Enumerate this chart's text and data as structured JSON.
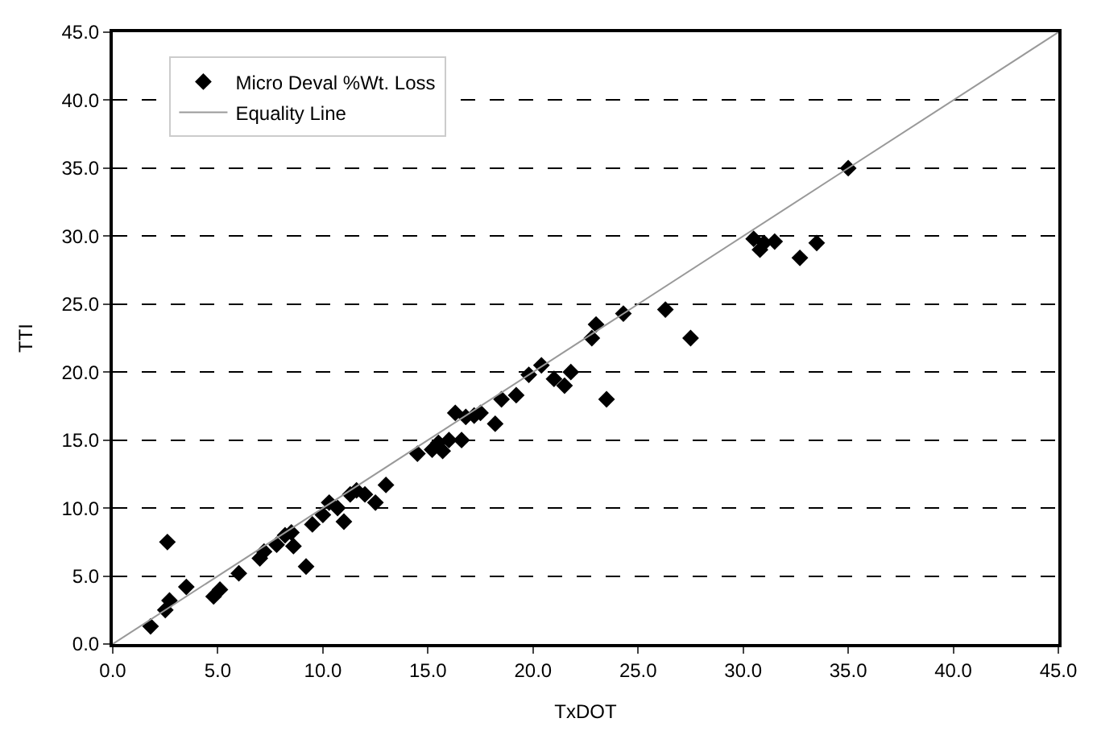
{
  "chart_data": {
    "type": "scatter",
    "xlabel": "TxDOT",
    "ylabel": "TTI",
    "xlim": [
      0,
      45
    ],
    "ylim": [
      0,
      45
    ],
    "xticks": [
      {
        "value": 0,
        "label": "0.0"
      },
      {
        "value": 5,
        "label": "5.0"
      },
      {
        "value": 10,
        "label": "10.0"
      },
      {
        "value": 15,
        "label": "15.0"
      },
      {
        "value": 20,
        "label": "20.0"
      },
      {
        "value": 25,
        "label": "25.0"
      },
      {
        "value": 30,
        "label": "30.0"
      },
      {
        "value": 35,
        "label": "35.0"
      },
      {
        "value": 40,
        "label": "40.0"
      },
      {
        "value": 45,
        "label": "45.0"
      }
    ],
    "yticks": [
      {
        "value": 0,
        "label": "0.0"
      },
      {
        "value": 5,
        "label": "5.0"
      },
      {
        "value": 10,
        "label": "10.0"
      },
      {
        "value": 15,
        "label": "15.0"
      },
      {
        "value": 20,
        "label": "20.0"
      },
      {
        "value": 25,
        "label": "25.0"
      },
      {
        "value": 30,
        "label": "30.0"
      },
      {
        "value": 35,
        "label": "35.0"
      },
      {
        "value": 40,
        "label": "40.0"
      },
      {
        "value": 45,
        "label": "45.0"
      }
    ],
    "grid": "y",
    "legend": "top left",
    "series": [
      {
        "name": "Micro Deval %Wt. Loss",
        "marker": "diamond",
        "color": "#000000",
        "x": [
          1.8,
          2.5,
          2.7,
          2.6,
          3.5,
          4.8,
          5.1,
          6.0,
          7.0,
          7.2,
          7.8,
          8.0,
          8.2,
          8.5,
          8.6,
          9.2,
          9.5,
          10.0,
          10.3,
          10.7,
          11.0,
          11.3,
          11.6,
          12.0,
          12.5,
          13.0,
          14.5,
          15.2,
          15.5,
          15.7,
          16.0,
          16.3,
          16.6,
          16.8,
          17.2,
          17.5,
          18.2,
          18.5,
          19.2,
          19.8,
          20.4,
          21.0,
          21.5,
          21.8,
          22.8,
          23.0,
          23.5,
          24.3,
          26.3,
          27.5,
          30.5,
          30.8,
          31.0,
          31.5,
          32.7,
          33.5,
          35.0
        ],
        "values": [
          1.3,
          2.5,
          3.2,
          7.5,
          4.2,
          3.5,
          4.0,
          5.2,
          6.3,
          6.8,
          7.3,
          null,
          8.0,
          8.2,
          7.2,
          5.7,
          8.8,
          9.5,
          10.4,
          10.0,
          9.0,
          11.0,
          11.3,
          11.0,
          10.4,
          11.7,
          14.0,
          14.3,
          14.8,
          14.2,
          15.0,
          17.0,
          15.0,
          16.7,
          16.8,
          17.0,
          16.2,
          18.0,
          18.3,
          19.8,
          20.5,
          19.5,
          19.0,
          20.0,
          22.5,
          23.5,
          18.0,
          24.3,
          24.6,
          22.5,
          29.8,
          29.0,
          29.5,
          29.6,
          28.4,
          29.5,
          35.0
        ]
      },
      {
        "name": "Equality Line",
        "type": "line",
        "marker": "none",
        "line_style": "solid",
        "color": "#999999",
        "x": [
          0,
          45
        ],
        "values": [
          0,
          45
        ]
      }
    ]
  }
}
